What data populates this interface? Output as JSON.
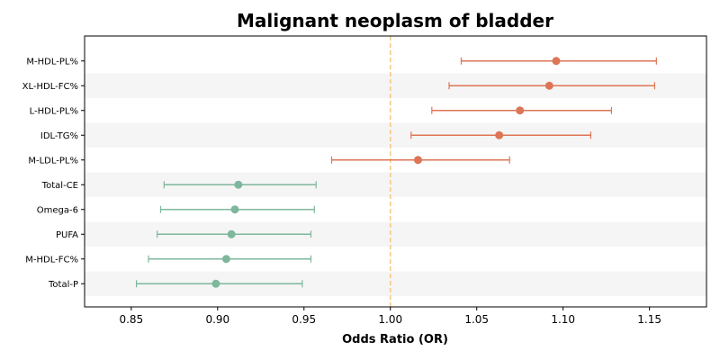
{
  "chart_data": {
    "type": "forest",
    "title": "Malignant neoplasm of bladder",
    "xlabel": "Odds Ratio (OR)",
    "ylabel": "",
    "xlim": [
      0.823,
      1.183
    ],
    "xticks": [
      "0.85",
      "0.90",
      "0.95",
      "1.00",
      "1.05",
      "1.10",
      "1.15"
    ],
    "xtick_values": [
      0.85,
      0.9,
      0.95,
      1.0,
      1.05,
      1.1,
      1.15
    ],
    "reference_line": 1.0,
    "alternating_row_shading": true,
    "colors": {
      "increased_risk": "#dd7556",
      "decreased_risk": "#7eb79c",
      "reference_line": "#f2c983",
      "row_shade": "#f5f5f5"
    },
    "rows": [
      {
        "label": "M-HDL-PL%",
        "or": 1.096,
        "lower": 1.041,
        "upper": 1.154
      },
      {
        "label": "XL-HDL-FC%",
        "or": 1.092,
        "lower": 1.034,
        "upper": 1.153
      },
      {
        "label": "L-HDL-PL%",
        "or": 1.075,
        "lower": 1.024,
        "upper": 1.128
      },
      {
        "label": "IDL-TG%",
        "or": 1.063,
        "lower": 1.012,
        "upper": 1.116
      },
      {
        "label": "M-LDL-PL%",
        "or": 1.016,
        "lower": 0.966,
        "upper": 1.069
      },
      {
        "label": "Total-CE",
        "or": 0.912,
        "lower": 0.869,
        "upper": 0.957
      },
      {
        "label": "Omega-6",
        "or": 0.91,
        "lower": 0.867,
        "upper": 0.956
      },
      {
        "label": "PUFA",
        "or": 0.908,
        "lower": 0.865,
        "upper": 0.954
      },
      {
        "label": "M-HDL-FC%",
        "or": 0.905,
        "lower": 0.86,
        "upper": 0.954
      },
      {
        "label": "Total-P",
        "or": 0.899,
        "lower": 0.853,
        "upper": 0.949
      }
    ]
  }
}
